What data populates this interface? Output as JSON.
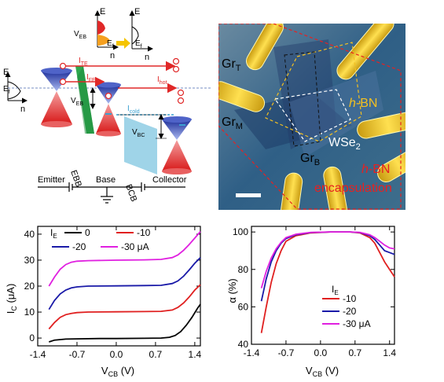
{
  "schematic": {
    "labels": {
      "e": "E",
      "n": "n",
      "veb": "V",
      "veb_sub": "EB",
      "ef": "E",
      "ef_sub": "f",
      "ite": "I",
      "ite_sub": "TE",
      "ife": "I",
      "ife_sub": "FE",
      "ihot": "I",
      "ihot_sub": "hot",
      "icold": "I",
      "icold_sub": "cold",
      "vbc": "V",
      "vbc_sub": "BC",
      "ebb": "EBB",
      "bcb": "BCB",
      "emitter": "Emitter",
      "base": "Base",
      "collector": "Collector"
    },
    "colors": {
      "arrow": "#e02828",
      "ebb": "#2fa84f",
      "bcb": "#9fd4e8",
      "cone_top": "#2438a8",
      "cone_bottom": "#e02828"
    }
  },
  "micrograph": {
    "labels": {
      "gr": "Gr",
      "t": "T",
      "m": "M",
      "b": "B",
      "hbn_h": "h",
      "hbn_rest": "-BN",
      "wse2": "WSe",
      "wse2_sub": "2",
      "encapsulation": "encapsulation"
    },
    "colors": {
      "hbn": "#f4c020",
      "encaps": "#e82020",
      "background": "#3a6a8a"
    }
  },
  "chart_data": [
    {
      "type": "line",
      "xlabel": "V",
      "xlabel_sub": "CB",
      "xlabel_unit": "(V)",
      "ylabel": "I",
      "ylabel_sub": "C",
      "ylabel_unit": "(μA)",
      "xlim": [
        -1.4,
        1.5
      ],
      "ylim": [
        -3,
        43
      ],
      "xticks": [
        -1.4,
        -0.7,
        0.0,
        0.7,
        1.4
      ],
      "xtick_labels": [
        "-1.4",
        "-0.7",
        "0.0",
        "0.7",
        "1.4"
      ],
      "yticks": [
        0,
        10,
        20,
        30,
        40
      ],
      "ytick_labels": [
        "0",
        "10",
        "20",
        "30",
        "40"
      ],
      "legend_title": "I",
      "legend_title_sub": "E",
      "series": [
        {
          "name": "0",
          "color": "#000000",
          "x": [
            -1.2,
            -1.1,
            -0.9,
            -0.7,
            -0.3,
            0.0,
            0.5,
            0.8,
            0.95,
            1.05,
            1.15,
            1.25,
            1.35,
            1.45,
            1.5
          ],
          "y": [
            -1.5,
            -0.8,
            -0.4,
            -0.3,
            -0.2,
            -0.2,
            -0.1,
            0.0,
            0.3,
            1.0,
            2.5,
            5.0,
            8.0,
            11.5,
            13.0
          ]
        },
        {
          "name": "-10",
          "color": "#e02020",
          "x": [
            -1.2,
            -1.1,
            -1.0,
            -0.9,
            -0.8,
            -0.7,
            -0.5,
            0.0,
            0.5,
            0.8,
            1.0,
            1.1,
            1.2,
            1.3,
            1.4,
            1.5
          ],
          "y": [
            3.5,
            6.0,
            8.0,
            9.0,
            9.5,
            9.8,
            10.0,
            10.1,
            10.2,
            10.3,
            10.8,
            11.8,
            13.5,
            15.8,
            18.5,
            20.5
          ]
        },
        {
          "name": "-20",
          "color": "#1a1aa8",
          "x": [
            -1.2,
            -1.1,
            -1.0,
            -0.9,
            -0.8,
            -0.7,
            -0.5,
            0.0,
            0.5,
            0.8,
            1.0,
            1.1,
            1.2,
            1.3,
            1.4,
            1.5
          ],
          "y": [
            11.0,
            14.5,
            17.0,
            18.5,
            19.3,
            19.7,
            20.0,
            20.1,
            20.2,
            20.3,
            21.0,
            22.0,
            23.8,
            26.2,
            28.8,
            31.0
          ]
        },
        {
          "name": "-30 μA",
          "color": "#e020e0",
          "x": [
            -1.2,
            -1.1,
            -1.0,
            -0.9,
            -0.8,
            -0.7,
            -0.5,
            0.0,
            0.5,
            0.8,
            1.0,
            1.1,
            1.2,
            1.3,
            1.4,
            1.5
          ],
          "y": [
            20.0,
            23.5,
            26.5,
            28.3,
            29.2,
            29.6,
            29.8,
            30.0,
            30.1,
            30.3,
            31.0,
            32.0,
            33.8,
            36.0,
            38.5,
            41.0
          ]
        }
      ]
    },
    {
      "type": "line",
      "xlabel": "V",
      "xlabel_sub": "CB",
      "xlabel_unit": "(V)",
      "ylabel": "α",
      "ylabel_unit": "(%)",
      "xlim": [
        -1.4,
        1.5
      ],
      "ylim": [
        40,
        103
      ],
      "xticks": [
        -1.4,
        -0.7,
        0.0,
        0.7,
        1.4
      ],
      "xtick_labels": [
        "-1.4",
        "-0.7",
        "0.0",
        "0.7",
        "1.4"
      ],
      "yticks": [
        40,
        60,
        80,
        100
      ],
      "ytick_labels": [
        "40",
        "60",
        "80",
        "100"
      ],
      "legend_title": "I",
      "legend_title_sub": "E",
      "series": [
        {
          "name": "-10",
          "color": "#e02020",
          "x": [
            -1.2,
            -1.1,
            -1.0,
            -0.9,
            -0.8,
            -0.7,
            -0.5,
            -0.2,
            0.2,
            0.6,
            0.8,
            1.0,
            1.1,
            1.2,
            1.3,
            1.4,
            1.5
          ],
          "y": [
            46,
            60,
            73,
            83,
            90,
            95,
            98,
            99.5,
            100,
            100,
            99.5,
            97,
            94,
            89,
            84,
            80,
            76
          ]
        },
        {
          "name": "-20",
          "color": "#1a1aa8",
          "x": [
            -1.2,
            -1.1,
            -1.0,
            -0.9,
            -0.8,
            -0.7,
            -0.5,
            -0.2,
            0.2,
            0.6,
            0.8,
            1.0,
            1.1,
            1.2,
            1.3,
            1.4,
            1.5
          ],
          "y": [
            63,
            75,
            84,
            90,
            94,
            96.5,
            98.5,
            99.7,
            100,
            100,
            99.7,
            98,
            96,
            93,
            90,
            89,
            88
          ]
        },
        {
          "name": "-30 μA",
          "color": "#e020e0",
          "x": [
            -1.2,
            -1.1,
            -1.0,
            -0.9,
            -0.8,
            -0.7,
            -0.5,
            -0.2,
            0.2,
            0.6,
            0.8,
            1.0,
            1.1,
            1.2,
            1.3,
            1.4,
            1.5
          ],
          "y": [
            70,
            79,
            86,
            91,
            94.5,
            97,
            98.8,
            99.8,
            100,
            100,
            99.8,
            98.5,
            97,
            95,
            93,
            91.5,
            91
          ]
        }
      ]
    }
  ]
}
